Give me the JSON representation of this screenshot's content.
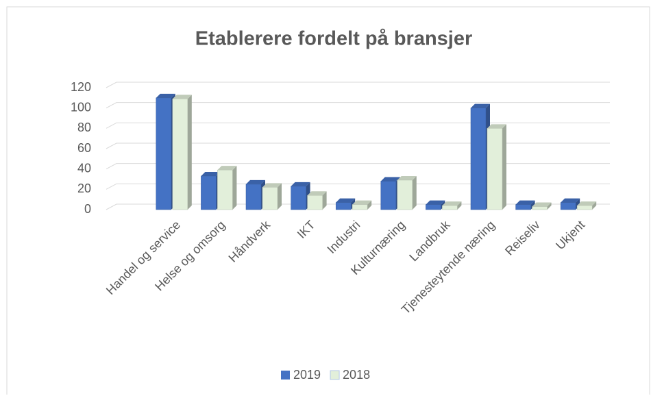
{
  "chart_data": {
    "type": "bar",
    "title": "Etablerere fordelt på bransjer",
    "categories": [
      "Handel og service",
      "Helse og omsorg",
      "Håndverk",
      "IKT",
      "Industri",
      "Kulturnæring",
      "Landbruk",
      "Tjenesteytende næring",
      "Reiseliv",
      "Ukjent"
    ],
    "series": [
      {
        "name": "2019",
        "color": "#4472c4",
        "values": [
          110,
          33,
          25,
          23,
          7,
          28,
          5,
          100,
          5,
          7
        ]
      },
      {
        "name": "2018",
        "color": "#e2efda",
        "values": [
          109,
          39,
          22,
          14,
          5,
          29,
          4,
          80,
          3,
          4
        ]
      }
    ],
    "ylim": [
      0,
      120
    ],
    "yticks": [
      0,
      20,
      40,
      60,
      80,
      100,
      120
    ],
    "grid": true,
    "legend": "bottom"
  }
}
